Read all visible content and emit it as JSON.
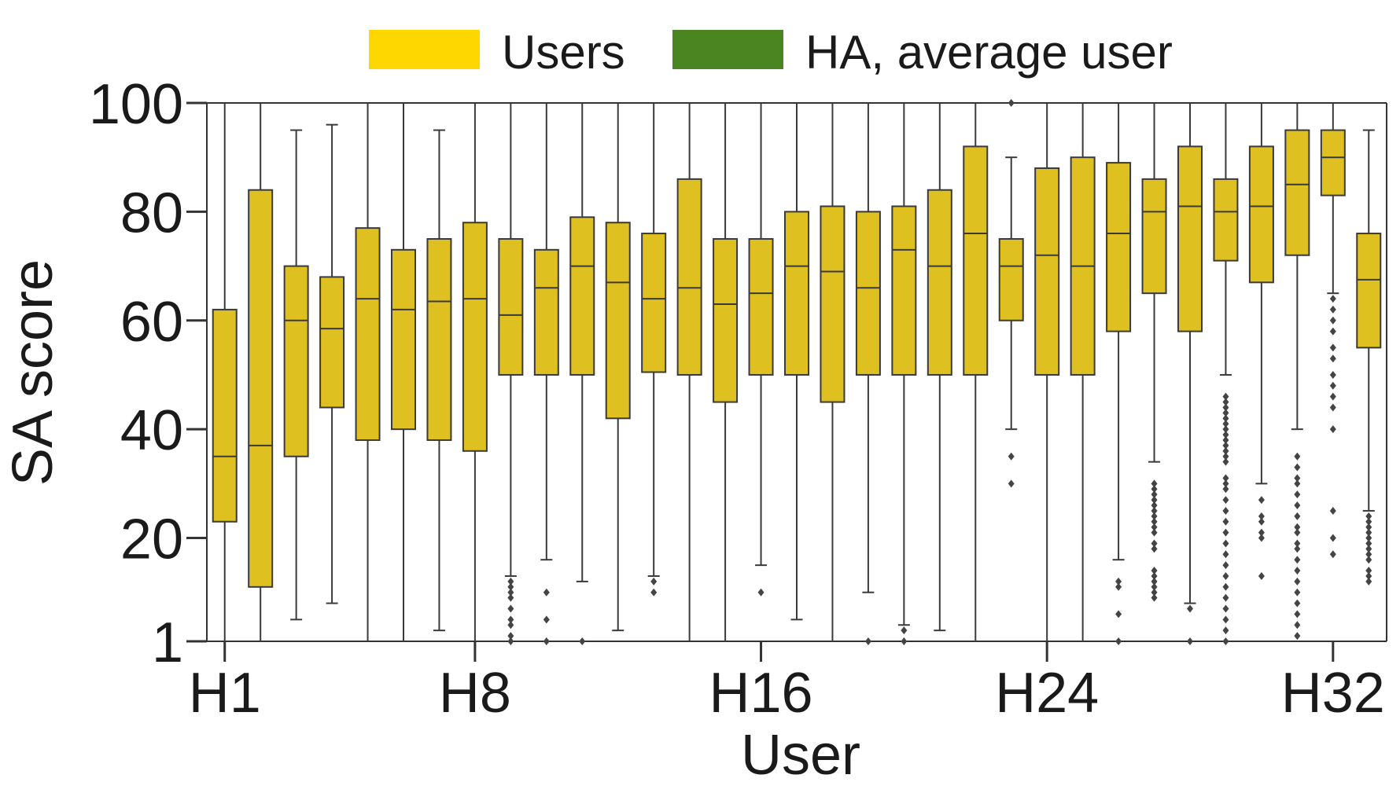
{
  "chart_data": {
    "type": "box",
    "xlabel": "User",
    "ylabel": "SA score",
    "ylim": [
      1,
      100
    ],
    "yticks": [
      1,
      20,
      40,
      60,
      80,
      100
    ],
    "xtick_labels": [
      "H1",
      "H8",
      "H16",
      "H24",
      "H32"
    ],
    "xtick_positions": [
      1,
      8,
      16,
      24,
      32
    ],
    "legend": {
      "placement": "top",
      "entries": [
        {
          "label": "Users",
          "color": "#FFD700"
        },
        {
          "label": "HA, average user",
          "color": "#4A8522"
        }
      ]
    },
    "box_color": "#DFC021",
    "line_color": "#3a3a3a",
    "grid": false,
    "series": [
      {
        "name": "Users",
        "boxes": [
          {
            "x": 1,
            "whisker_low": 1,
            "q1": 23,
            "median": 35,
            "q3": 62,
            "whisker_high": 100,
            "outliers": []
          },
          {
            "x": 2,
            "whisker_low": 1,
            "q1": 11,
            "median": 37,
            "q3": 84,
            "whisker_high": 100,
            "outliers": []
          },
          {
            "x": 3,
            "whisker_low": 5,
            "q1": 35,
            "median": 60,
            "q3": 70,
            "whisker_high": 95,
            "outliers": []
          },
          {
            "x": 4,
            "whisker_low": 8,
            "q1": 44,
            "median": 58.5,
            "q3": 68,
            "whisker_high": 96,
            "outliers": []
          },
          {
            "x": 5,
            "whisker_low": 1,
            "q1": 38,
            "median": 64,
            "q3": 77,
            "whisker_high": 100,
            "outliers": []
          },
          {
            "x": 6,
            "whisker_low": 1,
            "q1": 40,
            "median": 62,
            "q3": 73,
            "whisker_high": 100,
            "outliers": []
          },
          {
            "x": 7,
            "whisker_low": 3,
            "q1": 38,
            "median": 63.5,
            "q3": 75,
            "whisker_high": 95,
            "outliers": []
          },
          {
            "x": 8,
            "whisker_low": 1,
            "q1": 36,
            "median": 64,
            "q3": 78,
            "whisker_high": 100,
            "outliers": []
          },
          {
            "x": 9,
            "whisker_low": 13,
            "q1": 50,
            "median": 61,
            "q3": 75,
            "whisker_high": 100,
            "outliers": [
              12,
              11,
              10,
              9,
              7,
              5,
              4,
              2,
              1
            ]
          },
          {
            "x": 10,
            "whisker_low": 16,
            "q1": 50,
            "median": 66,
            "q3": 73,
            "whisker_high": 100,
            "outliers": [
              10,
              5,
              1
            ]
          },
          {
            "x": 11,
            "whisker_low": 12,
            "q1": 50,
            "median": 70,
            "q3": 79,
            "whisker_high": 100,
            "outliers": [
              1
            ]
          },
          {
            "x": 12,
            "whisker_low": 3,
            "q1": 42,
            "median": 67,
            "q3": 78,
            "whisker_high": 100,
            "outliers": []
          },
          {
            "x": 13,
            "whisker_low": 13,
            "q1": 50.5,
            "median": 64,
            "q3": 76,
            "whisker_high": 100,
            "outliers": [
              12,
              10
            ]
          },
          {
            "x": 14,
            "whisker_low": 1,
            "q1": 50,
            "median": 66,
            "q3": 86,
            "whisker_high": 100,
            "outliers": []
          },
          {
            "x": 15,
            "whisker_low": 1,
            "q1": 45,
            "median": 63,
            "q3": 75,
            "whisker_high": 100,
            "outliers": []
          },
          {
            "x": 16,
            "whisker_low": 15,
            "q1": 50,
            "median": 65,
            "q3": 75,
            "whisker_high": 100,
            "outliers": [
              10
            ]
          },
          {
            "x": 17,
            "whisker_low": 5,
            "q1": 50,
            "median": 70,
            "q3": 80,
            "whisker_high": 100,
            "outliers": []
          },
          {
            "x": 18,
            "whisker_low": 1,
            "q1": 45,
            "median": 69,
            "q3": 81,
            "whisker_high": 100,
            "outliers": []
          },
          {
            "x": 19,
            "whisker_low": 10,
            "q1": 50,
            "median": 66,
            "q3": 80,
            "whisker_high": 100,
            "outliers": [
              1
            ]
          },
          {
            "x": 20,
            "whisker_low": 4,
            "q1": 50,
            "median": 73,
            "q3": 81,
            "whisker_high": 100,
            "outliers": [
              3,
              1
            ]
          },
          {
            "x": 21,
            "whisker_low": 3,
            "q1": 50,
            "median": 70,
            "q3": 84,
            "whisker_high": 100,
            "outliers": []
          },
          {
            "x": 22,
            "whisker_low": 1,
            "q1": 50,
            "median": 76,
            "q3": 92,
            "whisker_high": 100,
            "outliers": []
          },
          {
            "x": 23,
            "whisker_low": 40,
            "q1": 60,
            "median": 70,
            "q3": 75,
            "whisker_high": 90,
            "outliers": [
              100,
              35,
              30
            ]
          },
          {
            "x": 24,
            "whisker_low": 1,
            "q1": 50,
            "median": 72,
            "q3": 88,
            "whisker_high": 100,
            "outliers": []
          },
          {
            "x": 25,
            "whisker_low": 1,
            "q1": 50,
            "median": 70,
            "q3": 90,
            "whisker_high": 100,
            "outliers": []
          },
          {
            "x": 26,
            "whisker_low": 16,
            "q1": 58,
            "median": 76,
            "q3": 89,
            "whisker_high": 100,
            "outliers": [
              12,
              11,
              6,
              1
            ]
          },
          {
            "x": 27,
            "whisker_low": 34,
            "q1": 65,
            "median": 80,
            "q3": 86,
            "whisker_high": 100,
            "outliers": [
              30,
              29,
              28,
              27,
              26,
              25,
              24,
              23,
              22,
              21,
              19,
              18,
              14,
              13,
              12,
              11,
              10,
              9
            ]
          },
          {
            "x": 28,
            "whisker_low": 8,
            "q1": 58,
            "median": 81,
            "q3": 92,
            "whisker_high": 100,
            "outliers": [
              7,
              1
            ]
          },
          {
            "x": 29,
            "whisker_low": 50,
            "q1": 71,
            "median": 80,
            "q3": 86,
            "whisker_high": 100,
            "outliers": [
              46,
              45,
              44,
              43,
              42,
              41,
              40,
              39,
              38,
              37,
              36,
              35,
              34,
              31,
              30,
              29,
              27,
              25,
              23,
              21,
              19,
              17,
              15,
              13,
              11,
              9,
              7,
              5,
              3,
              1
            ]
          },
          {
            "x": 30,
            "whisker_low": 30,
            "q1": 67,
            "median": 81,
            "q3": 92,
            "whisker_high": 100,
            "outliers": [
              27,
              24,
              23,
              21,
              20,
              13
            ]
          },
          {
            "x": 31,
            "whisker_low": 40,
            "q1": 72,
            "median": 85,
            "q3": 95,
            "whisker_high": 100,
            "outliers": [
              35,
              33,
              31,
              30,
              28,
              26,
              24,
              22,
              21,
              19,
              18,
              16,
              14,
              12,
              10,
              8,
              6,
              4,
              2
            ]
          },
          {
            "x": 32,
            "whisker_low": 65,
            "q1": 83,
            "median": 90,
            "q3": 95,
            "whisker_high": 100,
            "outliers": [
              64,
              62,
              60,
              58,
              55,
              53,
              50,
              48,
              46,
              44,
              40,
              25,
              20,
              17
            ]
          },
          {
            "x": 33,
            "whisker_low": 25,
            "q1": 55,
            "median": 67.5,
            "q3": 76,
            "whisker_high": 95,
            "outliers": [
              24,
              23,
              22,
              21,
              20,
              19,
              18,
              17,
              16,
              14,
              13,
              12
            ]
          }
        ]
      }
    ]
  }
}
